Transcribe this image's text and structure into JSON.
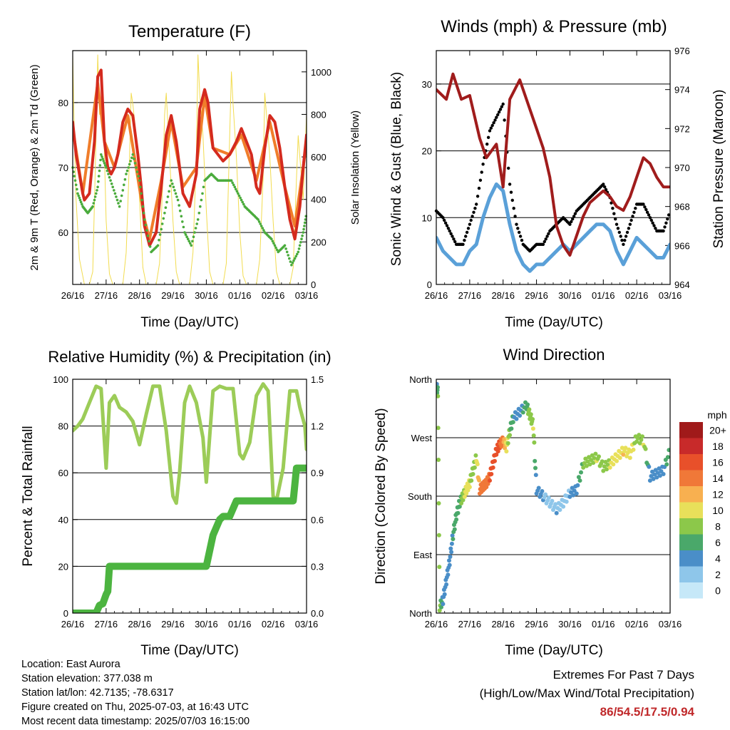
{
  "x_ticks": [
    "26/16",
    "27/16",
    "28/16",
    "29/16",
    "30/16",
    "01/16",
    "02/16",
    "03/16"
  ],
  "panels": {
    "temperature": {
      "title": "Temperature (F)",
      "xlabel": "Time (Day/UTC)",
      "ylabel_left": "2m & 9m T (Red, Orange) & 2m Td (Green)",
      "ylabel_right": "Solar Insolation (Yellow)",
      "left_ticks": [
        "60",
        "70",
        "80"
      ],
      "right_ticks": [
        "0",
        "200",
        "400",
        "600",
        "800",
        "1000"
      ]
    },
    "winds": {
      "title": "Winds (mph) & Pressure (mb)",
      "xlabel": "Time (Day/UTC)",
      "ylabel_left": "Sonic Wind & Gust (Blue, Black)",
      "ylabel_right": "Station Pressure (Maroon)",
      "left_ticks": [
        "0",
        "10",
        "20",
        "30"
      ],
      "right_ticks": [
        "964",
        "966",
        "968",
        "970",
        "972",
        "974",
        "976"
      ]
    },
    "humidity": {
      "title": "Relative Humidity (%) & Precipitation (in)",
      "xlabel": "Time (Day/UTC)",
      "ylabel_left": "Percent & Total Rainfall",
      "left_ticks": [
        "0",
        "20",
        "40",
        "60",
        "80",
        "100"
      ],
      "right_ticks": [
        "0.0",
        "0.3",
        "0.6",
        "0.9",
        "1.2",
        "1.5"
      ]
    },
    "direction": {
      "title": "Wind Direction",
      "xlabel": "Time (Day/UTC)",
      "ylabel_left": "Direction (Colored By Speed)",
      "left_ticks": [
        "North",
        "East",
        "South",
        "West",
        "North"
      ],
      "legend_title": "mph",
      "legend_labels": [
        "0",
        "2",
        "4",
        "6",
        "8",
        "10",
        "12",
        "14",
        "16",
        "18",
        "20+"
      ],
      "legend_colors": [
        "#c6e8f8",
        "#8ec6ea",
        "#4a8ec8",
        "#4aa86a",
        "#8cc84a",
        "#e8e05a",
        "#f8b050",
        "#f07838",
        "#e8502a",
        "#c82a2a",
        "#a01a1a"
      ]
    }
  },
  "info": {
    "location": "Location: East Aurora",
    "elevation": "Station elevation: 377.038 m",
    "latlon": "Station lat/lon: 42.7135; -78.6317",
    "created": "Figure created on Thu, 2025-07-03, at 16:43 UTC",
    "recent": "Most recent data timestamp: 2025/07/03 16:15:00"
  },
  "extremes": {
    "title": "Extremes For Past 7 Days",
    "subtitle": "(High/Low/Max Wind/Total Precipitation)",
    "values": "86/54.5/17.5/0.94"
  },
  "colors": {
    "temp_2m": "#d42a1e",
    "temp_9m": "#f07d2a",
    "dewpoint": "#4aab3c",
    "solar": "#f2dc50",
    "wind": "#5aa0d8",
    "gust": "#000000",
    "pressure": "#a01c1c",
    "rh": "#9ccc58",
    "precip": "#4cb440"
  },
  "chart_data": [
    {
      "type": "line",
      "x_unit": "day index from 26/16 UTC (0..7)",
      "series": [
        {
          "name": "2m T",
          "axis": "left",
          "x": [
            0,
            0.1,
            0.2,
            0.3,
            0.35,
            0.5,
            0.65,
            0.75,
            0.85,
            0.95,
            1.05,
            1.15,
            1.25,
            1.35,
            1.5,
            1.65,
            1.8,
            1.95,
            2.05,
            2.15,
            2.3,
            2.5,
            2.65,
            2.8,
            2.95,
            3.1,
            3.3,
            3.5,
            3.7,
            3.8,
            3.95,
            4.05,
            4.2,
            4.35,
            4.5,
            4.7,
            4.9,
            5.05,
            5.2,
            5.35,
            5.5,
            5.6,
            5.75,
            5.9,
            6.05,
            6.2,
            6.35,
            6.5,
            6.65,
            6.8,
            6.9,
            7.0
          ],
          "y": [
            77,
            72,
            69,
            66,
            65,
            66,
            74,
            84,
            85,
            74,
            70,
            69,
            70,
            72,
            77,
            79,
            78,
            72,
            67,
            61,
            58,
            60,
            67,
            75,
            78,
            74,
            66,
            64,
            69,
            79,
            82,
            80,
            73,
            72,
            71,
            72,
            74,
            76,
            74,
            72,
            67,
            66,
            73,
            78,
            77,
            73,
            67,
            62,
            59,
            64,
            70,
            75
          ]
        },
        {
          "name": "9m T",
          "axis": "left",
          "x": [
            0,
            0.3,
            0.75,
            0.95,
            1.25,
            1.65,
            2.15,
            2.3,
            2.65,
            2.95,
            3.3,
            3.7,
            3.95,
            4.2,
            4.7,
            5.05,
            5.5,
            5.9,
            6.35,
            6.65,
            6.9,
            7.0
          ],
          "y": [
            76,
            66,
            83,
            74,
            70,
            78,
            62,
            59,
            68,
            77,
            67,
            70,
            81,
            73,
            72,
            75,
            68,
            77,
            67,
            61,
            70,
            74
          ]
        },
        {
          "name": "2m Td",
          "axis": "left",
          "x": [
            0,
            0.15,
            0.3,
            0.45,
            0.6,
            0.75,
            0.85,
            1.0,
            1.2,
            1.4,
            1.6,
            1.8,
            2.0,
            2.15,
            2.35,
            2.55,
            2.75,
            2.95,
            3.15,
            3.35,
            3.55,
            3.75,
            3.95,
            4.15,
            4.35,
            4.55,
            4.75,
            4.95,
            5.15,
            5.35,
            5.55,
            5.75,
            5.95,
            6.15,
            6.35,
            6.55,
            6.75,
            6.9,
            7.0
          ],
          "y": [
            70,
            66,
            64,
            63,
            64,
            67,
            72,
            70,
            67,
            64,
            69,
            72,
            68,
            62,
            57,
            58,
            63,
            68,
            65,
            60,
            58,
            62,
            68,
            69,
            68,
            68,
            68,
            66,
            64,
            63,
            62,
            60,
            59,
            57,
            58,
            55,
            57,
            60,
            63
          ]
        },
        {
          "name": "Solar Insolation",
          "axis": "right",
          "x": [
            0,
            0.05,
            0.1,
            0.2,
            0.35,
            0.5,
            0.6,
            0.7,
            0.75,
            0.8,
            0.9,
            1.0,
            1.1,
            1.2,
            1.35,
            1.5,
            1.6,
            1.7,
            1.75,
            1.8,
            1.9,
            2.0,
            2.1,
            2.2,
            2.35,
            2.5,
            2.6,
            2.7,
            2.75,
            2.8,
            2.9,
            3.0,
            3.1,
            3.2,
            3.35,
            3.5,
            3.6,
            3.7,
            3.75,
            3.8,
            3.9,
            4.0,
            4.1,
            4.2,
            4.35,
            4.5,
            4.6,
            4.7,
            4.75,
            4.8,
            4.9,
            5.0,
            5.1,
            5.2,
            5.35,
            5.5,
            5.6,
            5.7,
            5.75,
            5.8,
            5.9,
            6.0,
            6.1,
            6.2,
            6.35,
            6.5,
            6.6,
            6.7,
            6.75,
            6.8,
            6.9,
            7.0
          ],
          "y": [
            1080,
            700,
            400,
            120,
            0,
            0,
            60,
            700,
            1080,
            800,
            900,
            300,
            50,
            0,
            0,
            0,
            150,
            600,
            900,
            850,
            700,
            400,
            80,
            0,
            0,
            0,
            100,
            500,
            800,
            900,
            600,
            300,
            60,
            0,
            0,
            0,
            150,
            600,
            1080,
            900,
            700,
            350,
            60,
            0,
            0,
            0,
            100,
            700,
            1000,
            850,
            600,
            250,
            40,
            0,
            0,
            0,
            120,
            500,
            900,
            800,
            600,
            300,
            60,
            0,
            0,
            0,
            80,
            500,
            700,
            600,
            400,
            800
          ]
        }
      ],
      "ylim_left": [
        52,
        88
      ],
      "ylim_right": [
        0,
        1100
      ]
    },
    {
      "type": "line",
      "x_unit": "day index from 26/16 UTC (0..7)",
      "series": [
        {
          "name": "Sonic Wind",
          "axis": "left",
          "x": [
            0,
            0.2,
            0.4,
            0.6,
            0.8,
            1.0,
            1.2,
            1.4,
            1.6,
            1.8,
            2.0,
            2.2,
            2.4,
            2.6,
            2.8,
            3.0,
            3.2,
            3.4,
            3.6,
            3.8,
            4.0,
            4.2,
            4.4,
            4.6,
            4.8,
            5.0,
            5.2,
            5.4,
            5.6,
            5.8,
            6.0,
            6.2,
            6.4,
            6.6,
            6.8,
            7.0
          ],
          "y": [
            7,
            5,
            4,
            3,
            3,
            5,
            6,
            10,
            13,
            15,
            14,
            9,
            5,
            3,
            2,
            3,
            3,
            4,
            5,
            6,
            5,
            6,
            7,
            8,
            9,
            9,
            8,
            5,
            3,
            5,
            7,
            6,
            5,
            4,
            4,
            6
          ]
        },
        {
          "name": "Gust",
          "axis": "left",
          "x": [
            0,
            0.2,
            0.4,
            0.6,
            0.8,
            1.0,
            1.2,
            1.4,
            1.6,
            1.8,
            2.0,
            2.2,
            2.4,
            2.6,
            2.8,
            3.0,
            3.2,
            3.4,
            3.6,
            3.8,
            4.0,
            4.2,
            4.4,
            4.6,
            4.8,
            5.0,
            5.2,
            5.4,
            5.6,
            5.8,
            6.0,
            6.2,
            6.4,
            6.6,
            6.8,
            7.0
          ],
          "y": [
            11,
            10,
            8,
            6,
            6,
            9,
            12,
            18,
            23,
            25,
            27,
            15,
            9,
            6,
            5,
            6,
            6,
            8,
            9,
            10,
            9,
            11,
            12,
            13,
            14,
            15,
            13,
            9,
            6,
            9,
            12,
            12,
            10,
            8,
            8,
            11
          ]
        },
        {
          "name": "Station Pressure",
          "axis": "right",
          "x": [
            0,
            0.3,
            0.5,
            0.75,
            1.0,
            1.3,
            1.5,
            1.8,
            2.0,
            2.2,
            2.5,
            2.8,
            3.0,
            3.2,
            3.4,
            3.6,
            3.8,
            4.0,
            4.2,
            4.4,
            4.6,
            4.8,
            5.0,
            5.2,
            5.4,
            5.6,
            5.8,
            6.0,
            6.2,
            6.4,
            6.6,
            6.8,
            7.0
          ],
          "y": [
            974.0,
            973.5,
            974.8,
            973.5,
            973.7,
            971.5,
            970.5,
            971.2,
            969.0,
            973.5,
            974.5,
            973.0,
            972.0,
            971.0,
            969.5,
            967.0,
            966.0,
            965.5,
            966.5,
            967.5,
            968.2,
            968.5,
            968.8,
            968.5,
            968.0,
            967.8,
            968.5,
            969.5,
            970.5,
            970.2,
            969.5,
            969.0,
            969.0
          ]
        }
      ],
      "ylim_left": [
        0,
        35
      ],
      "ylim_right": [
        964,
        976
      ]
    },
    {
      "type": "line",
      "x_unit": "day index from 26/16 UTC (0..7)",
      "series": [
        {
          "name": "Relative Humidity",
          "axis": "left",
          "x": [
            0,
            0.15,
            0.3,
            0.5,
            0.7,
            0.85,
            1.0,
            1.1,
            1.25,
            1.4,
            1.6,
            1.8,
            2.0,
            2.2,
            2.4,
            2.6,
            2.8,
            3.0,
            3.1,
            3.2,
            3.35,
            3.5,
            3.7,
            3.9,
            4.0,
            4.2,
            4.4,
            4.6,
            4.8,
            5.0,
            5.1,
            5.3,
            5.5,
            5.7,
            5.85,
            6.0,
            6.1,
            6.3,
            6.5,
            6.7,
            6.8,
            6.95,
            7.0
          ],
          "y": [
            78,
            80,
            83,
            90,
            97,
            96,
            62,
            90,
            93,
            88,
            86,
            82,
            72,
            85,
            97,
            97,
            78,
            50,
            47,
            60,
            90,
            97,
            90,
            75,
            56,
            95,
            97,
            96,
            96,
            68,
            66,
            73,
            93,
            98,
            95,
            50,
            48,
            62,
            95,
            95,
            88,
            80,
            70
          ]
        },
        {
          "name": "Total Precipitation",
          "axis": "right",
          "x": [
            0,
            0.2,
            0.4,
            0.6,
            0.7,
            0.8,
            0.9,
            1.0,
            1.05,
            1.1,
            1.3,
            1.6,
            2.0,
            2.5,
            3.0,
            3.5,
            4.0,
            4.2,
            4.3,
            4.4,
            4.5,
            4.7,
            4.9,
            5.2,
            5.5,
            5.8,
            6.1,
            6.4,
            6.6,
            6.7,
            6.8,
            7.0
          ],
          "y": [
            0,
            0,
            0,
            0,
            0,
            0.05,
            0.06,
            0.12,
            0.14,
            0.3,
            0.3,
            0.3,
            0.3,
            0.3,
            0.3,
            0.3,
            0.3,
            0.5,
            0.55,
            0.6,
            0.62,
            0.62,
            0.72,
            0.72,
            0.72,
            0.72,
            0.72,
            0.72,
            0.72,
            0.93,
            0.93,
            0.93
          ]
        }
      ],
      "ylim_left": [
        0,
        100
      ],
      "ylim_right": [
        0,
        1.5
      ]
    },
    {
      "type": "scatter",
      "x_unit": "day index from 26/16 UTC (0..7)",
      "y_unit": "direction degrees (0 North, 90 East, 180 South, 270 West, 360 North)",
      "color_by": "speed mph",
      "series": [
        {
          "name": "Wind Direction",
          "x": [
            0,
            0.05,
            0.1,
            0.2,
            0.3,
            0.4,
            0.5,
            0.6,
            0.7,
            0.8,
            0.9,
            1.0,
            1.1,
            1.2,
            1.3,
            1.4,
            1.5,
            1.6,
            1.7,
            1.8,
            1.9,
            2.0,
            2.1,
            2.2,
            2.3,
            2.5,
            2.7,
            2.8,
            2.9,
            3.0,
            3.2,
            3.4,
            3.6,
            3.8,
            4.0,
            4.2,
            4.4,
            4.6,
            4.8,
            5.0,
            5.2,
            5.4,
            5.6,
            5.8,
            6.0,
            6.2,
            6.4,
            6.6,
            6.8,
            7.0
          ],
          "y": [
            350,
            340,
            10,
            20,
            50,
            80,
            120,
            150,
            170,
            180,
            190,
            200,
            220,
            240,
            190,
            195,
            200,
            210,
            230,
            250,
            260,
            265,
            255,
            280,
            300,
            310,
            320,
            305,
            290,
            190,
            180,
            170,
            160,
            170,
            185,
            190,
            230,
            235,
            240,
            225,
            230,
            240,
            250,
            245,
            270,
            265,
            210,
            215,
            220,
            250
          ],
          "speed": [
            3,
            7,
            8,
            4,
            3,
            3,
            5,
            5,
            6,
            8,
            10,
            9,
            8,
            9,
            13,
            14,
            14,
            15,
            15,
            16,
            15,
            13,
            10,
            7,
            5,
            4,
            6,
            8,
            9,
            3,
            3,
            2,
            3,
            2,
            3,
            4,
            7,
            8,
            9,
            8,
            9,
            10,
            11,
            10,
            8,
            9,
            4,
            3,
            4,
            7
          ]
        }
      ],
      "ylim": [
        0,
        360
      ]
    }
  ]
}
